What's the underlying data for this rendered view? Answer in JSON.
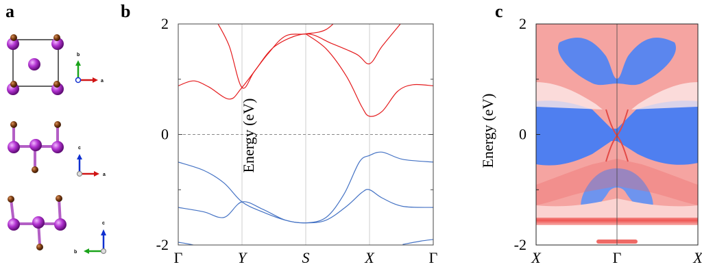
{
  "panel_labels": {
    "a": "a",
    "b": "b",
    "c": "c"
  },
  "panel_a": {
    "axes": [
      {
        "up": "b",
        "right": "a"
      },
      {
        "up": "c",
        "right": "a"
      },
      {
        "up": "c",
        "right": "b"
      }
    ],
    "colors": {
      "large_atom": "#b233d1",
      "small_atom": "#7a3b10",
      "axis_up_1": "#1aa31a",
      "axis_up_blue": "#1030d0",
      "axis_right": "#d01414",
      "axis_left_green": "#1aa31a"
    }
  },
  "panel_b": {
    "ylabel": "Energy (eV)",
    "yticks": [
      "2",
      "0",
      "-2"
    ],
    "xticks": [
      "Γ",
      "Y",
      "S",
      "X",
      "Γ"
    ],
    "xticks_italic": [
      false,
      true,
      true,
      true,
      false
    ],
    "colors": {
      "conduction": "#e41a1c",
      "valence": "#4472c4",
      "fermi": "#888888",
      "grid": "#cccccc"
    }
  },
  "panel_c": {
    "ylabel": "Energy (eV)",
    "yticks": [
      "2",
      "0",
      "-2"
    ],
    "xticks": [
      "X",
      "Γ",
      "X"
    ],
    "xticks_italic": [
      true,
      false,
      true
    ],
    "colors": {
      "red": "#f0706c",
      "blue": "#4f7ff0",
      "white": "#ffffff"
    }
  },
  "chart_data": {
    "type": "line",
    "title": "",
    "xlabel": "",
    "ylabel": "Energy (eV)",
    "ylim": [
      -2,
      2
    ],
    "categories": [
      "Γ",
      "Y",
      "S",
      "X",
      "Γ"
    ],
    "x": [
      0,
      0.25,
      0.5,
      0.75,
      1.0
    ],
    "series": [
      {
        "values": [
          0.88,
          0.85,
          1.82,
          1.28,
          0.88
        ]
      },
      {
        "values": [
          0.88,
          0.85,
          1.82,
          0.33,
          0.88
        ]
      },
      {
        "values": [
          -0.5,
          -1.22,
          -1.6,
          -0.38,
          -0.5
        ]
      },
      {
        "values": [
          -1.32,
          -1.22,
          -1.6,
          -1.0,
          -1.32
        ]
      }
    ],
    "grid": true
  }
}
